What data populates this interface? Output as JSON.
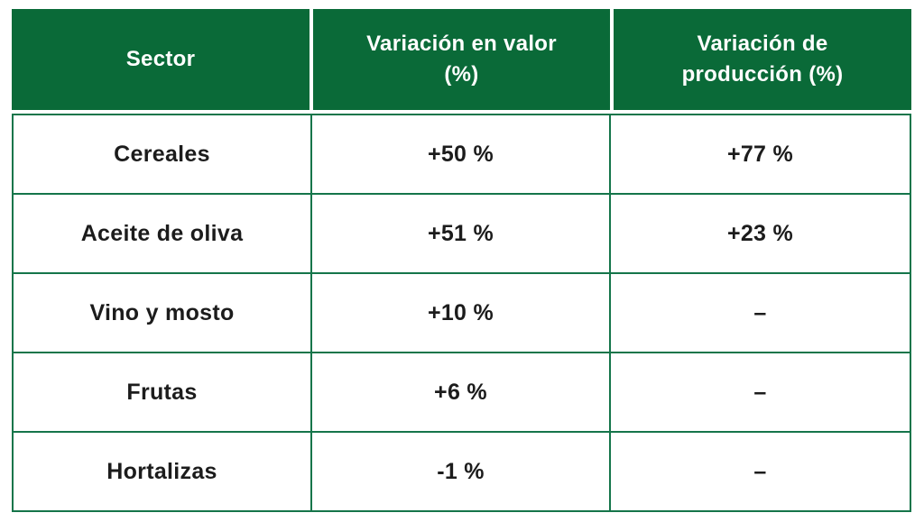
{
  "colors": {
    "header_bg": "#0a6a38",
    "border_green": "#15754a",
    "header_text": "#ffffff",
    "body_text": "#1c1c1c",
    "page_bg": "#ffffff"
  },
  "table": {
    "header": [
      {
        "line1": "Sector",
        "line2": ""
      },
      {
        "line1": "Variación en valor",
        "line2": "(%)"
      },
      {
        "line1": "Variación de",
        "line2": "producción (%)"
      }
    ],
    "rows": [
      [
        "Cereales",
        "+50 %",
        "+77 %"
      ],
      [
        "Aceite de oliva",
        "+51 %",
        "+23 %"
      ],
      [
        "Vino y mosto",
        "+10 %",
        "–"
      ],
      [
        "Frutas",
        "+6 %",
        "–"
      ],
      [
        "Hortalizas",
        "-1 %",
        "–"
      ]
    ]
  },
  "chart_data": {
    "type": "table",
    "title": "",
    "columns": [
      "Sector",
      "Variación en valor (%)",
      "Variación de producción (%)"
    ],
    "categories": [
      "Cereales",
      "Aceite de oliva",
      "Vino y mosto",
      "Frutas",
      "Hortalizas"
    ],
    "series": [
      {
        "name": "Variación en valor (%)",
        "values": [
          50,
          51,
          10,
          6,
          -1
        ]
      },
      {
        "name": "Variación de producción (%)",
        "values": [
          77,
          23,
          null,
          null,
          null
        ]
      }
    ],
    "missing_value_marker": "–"
  }
}
